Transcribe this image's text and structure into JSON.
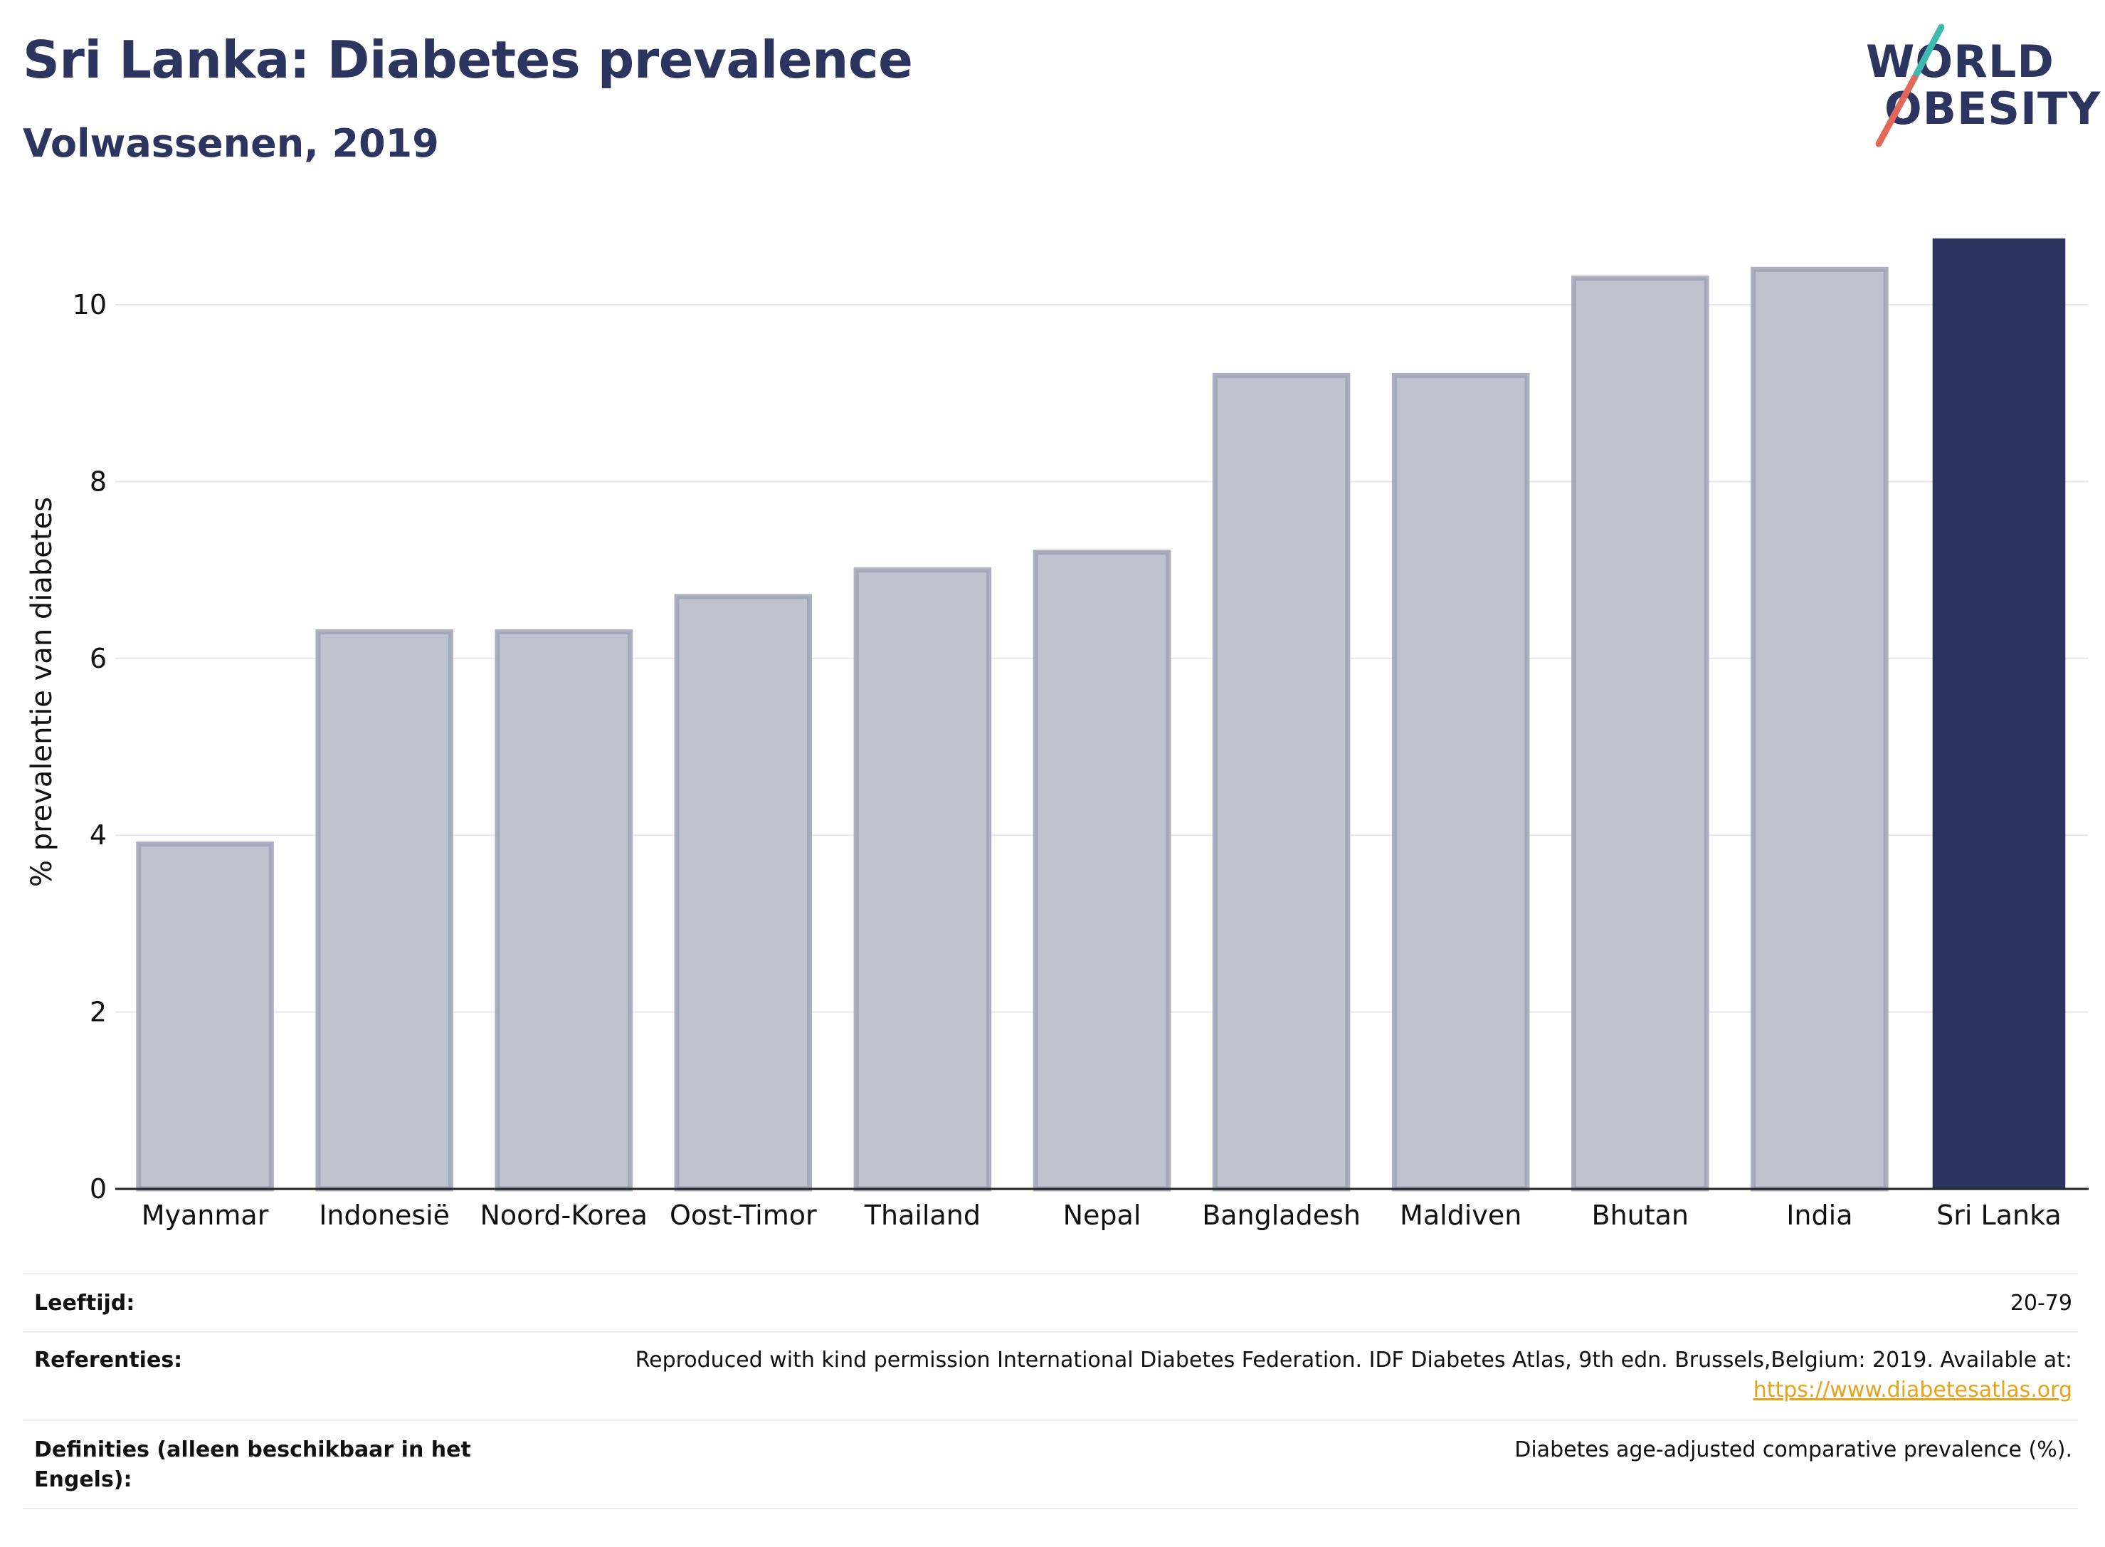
{
  "header": {
    "title": "Sri Lanka: Diabetes prevalence",
    "subtitle": "Volwassenen, 2019"
  },
  "logo": {
    "line1": "WORLD",
    "line2": "OBESITY"
  },
  "colors": {
    "highlight": "#2b3560",
    "bar_fill": "#bfc2cf",
    "bar_border": "#9da2b6",
    "grid": "#e6e8ee",
    "logo_teal": "#3fb8b0",
    "logo_red": "#e4685a"
  },
  "chart_data": {
    "type": "bar",
    "categories": [
      "Myanmar",
      "Indonesië",
      "Noord-Korea",
      "Oost-Timor",
      "Thailand",
      "Nepal",
      "Bangladesh",
      "Maldiven",
      "Bhutan",
      "India",
      "Sri Lanka"
    ],
    "values": [
      3.9,
      6.3,
      6.3,
      6.7,
      7.0,
      7.2,
      9.2,
      9.2,
      10.3,
      10.4,
      10.75
    ],
    "highlight": "Sri Lanka",
    "ylabel": "% prevalentie van diabetes",
    "ylim": [
      0,
      11
    ],
    "yticks": [
      0,
      2,
      4,
      6,
      8,
      10
    ],
    "grid": true
  },
  "meta": {
    "age_label": "Leeftijd:",
    "age_value": "20-79",
    "ref_label": "Referenties:",
    "ref_text": "Reproduced with kind permission International Diabetes Federation. IDF Diabetes Atlas, 9th edn. Brussels,Belgium: 2019. Available at:",
    "ref_link": "https://www.diabetesatlas.org",
    "def_label": "Definities (alleen beschikbaar in het Engels):",
    "def_value": "Diabetes age-adjusted comparative prevalence (%)."
  }
}
